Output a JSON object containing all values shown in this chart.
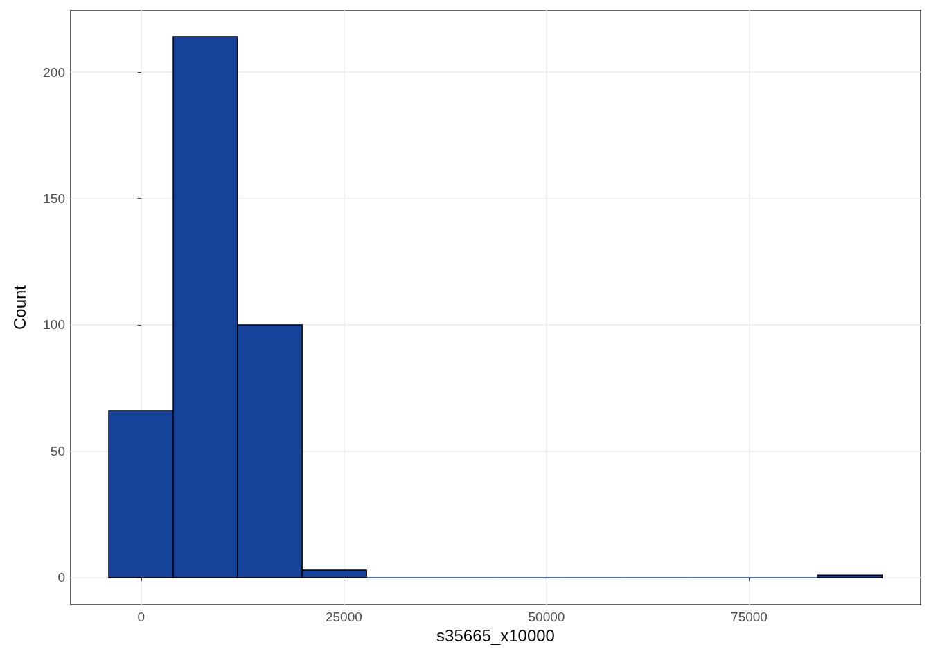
{
  "chart_data": {
    "type": "histogram",
    "xlabel": "s35665_x10000",
    "ylabel": "Count",
    "bins": [
      -4000,
      3950,
      11900,
      19850,
      27800,
      35750,
      43700,
      51650,
      59600,
      67550,
      75500,
      83450,
      91400
    ],
    "values": [
      66,
      214,
      100,
      3,
      0,
      0,
      0,
      0,
      0,
      0,
      0,
      1
    ],
    "color": "#17429a",
    "xlim": [
      -8700,
      96150
    ],
    "xticks": [
      0,
      25000,
      50000,
      75000
    ],
    "ylim": [
      -10.7,
      224.4
    ],
    "yticks": [
      0,
      50,
      100,
      150,
      200
    ],
    "grid": true
  }
}
